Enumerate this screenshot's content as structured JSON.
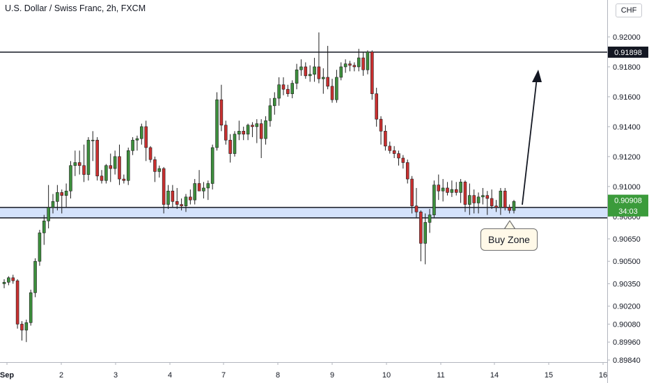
{
  "header": {
    "title": "U.S. Dollar / Swiss Franc, 2h, FXCM",
    "currency_button": "CHF"
  },
  "colors": {
    "up": "#3d8f3d",
    "down": "#c93030",
    "zone_fill": "#d4e2fb",
    "price_tag_green": "#3b9b3b",
    "price_tag_black": "#131722"
  },
  "annotations": {
    "buy_zone_label": "Buy Zone",
    "resistance_level": 0.91898,
    "zone_top": 0.9086,
    "zone_bottom": 0.9079
  },
  "price_tags": [
    {
      "label": "0.91898",
      "value": 0.91898,
      "style": "black"
    },
    {
      "label": "0.90908",
      "value": 0.90908,
      "style": "green"
    },
    {
      "label": "34:03",
      "value": 0.90837,
      "style": "green"
    }
  ],
  "chart_data": {
    "type": "candlestick",
    "title": "U.S. Dollar / Swiss Franc, 2h, FXCM",
    "ylim": [
      0.8984,
      0.9217
    ],
    "y_ticks": [
      {
        "label": "0.92000",
        "value": 0.92
      },
      {
        "label": "0.91800",
        "value": 0.918
      },
      {
        "label": "0.91600",
        "value": 0.916
      },
      {
        "label": "0.91400",
        "value": 0.914
      },
      {
        "label": "0.91200",
        "value": 0.912
      },
      {
        "label": "0.91000",
        "value": 0.91
      },
      {
        "label": "0.90800",
        "value": 0.908
      },
      {
        "label": "0.90650",
        "value": 0.9065
      },
      {
        "label": "0.90500",
        "value": 0.905
      },
      {
        "label": "0.90350",
        "value": 0.9035
      },
      {
        "label": "0.90200",
        "value": 0.902
      },
      {
        "label": "0.90080",
        "value": 0.9008
      },
      {
        "label": "0.89960",
        "value": 0.8996
      },
      {
        "label": "0.89840",
        "value": 0.8984
      }
    ],
    "x_ticks": [
      "Sep",
      "2",
      "3",
      "4",
      "7",
      "8",
      "9",
      "10",
      "11",
      "14",
      "15",
      "16"
    ],
    "candles": [
      [
        0.9035,
        0.9038,
        0.9032,
        0.9036
      ],
      [
        0.9036,
        0.904,
        0.9034,
        0.9039
      ],
      [
        0.9039,
        0.9041,
        0.9035,
        0.9037
      ],
      [
        0.9037,
        0.9038,
        0.9005,
        0.9008
      ],
      [
        0.9008,
        0.901,
        0.8997,
        0.9004
      ],
      [
        0.9004,
        0.9011,
        0.8996,
        0.9009
      ],
      [
        0.9009,
        0.9031,
        0.9007,
        0.9029
      ],
      [
        0.9029,
        0.9052,
        0.9026,
        0.905
      ],
      [
        0.905,
        0.9071,
        0.9047,
        0.9069
      ],
      [
        0.9069,
        0.9081,
        0.9061,
        0.9077
      ],
      [
        0.9077,
        0.9101,
        0.9072,
        0.9086
      ],
      [
        0.9086,
        0.9095,
        0.9082,
        0.909
      ],
      [
        0.909,
        0.9101,
        0.9084,
        0.9096
      ],
      [
        0.9096,
        0.9098,
        0.9082,
        0.9094
      ],
      [
        0.9094,
        0.9102,
        0.9086,
        0.9097
      ],
      [
        0.9097,
        0.9117,
        0.9092,
        0.9114
      ],
      [
        0.9114,
        0.9124,
        0.9107,
        0.9116
      ],
      [
        0.9116,
        0.9124,
        0.9108,
        0.9114
      ],
      [
        0.9114,
        0.9128,
        0.9103,
        0.9108
      ],
      [
        0.9108,
        0.9133,
        0.9104,
        0.9131
      ],
      [
        0.9131,
        0.9137,
        0.9117,
        0.9131
      ],
      [
        0.9131,
        0.9133,
        0.9104,
        0.9107
      ],
      [
        0.9107,
        0.9111,
        0.9102,
        0.9104
      ],
      [
        0.9104,
        0.9115,
        0.9102,
        0.9114
      ],
      [
        0.9114,
        0.9122,
        0.9103,
        0.9112
      ],
      [
        0.9112,
        0.9124,
        0.9108,
        0.912
      ],
      [
        0.912,
        0.9128,
        0.9101,
        0.9105
      ],
      [
        0.9105,
        0.9108,
        0.9102,
        0.9104
      ],
      [
        0.9104,
        0.9126,
        0.9101,
        0.9124
      ],
      [
        0.9124,
        0.9133,
        0.9121,
        0.9131
      ],
      [
        0.9131,
        0.9134,
        0.9124,
        0.9132
      ],
      [
        0.9132,
        0.9142,
        0.9128,
        0.914
      ],
      [
        0.914,
        0.9144,
        0.9117,
        0.9126
      ],
      [
        0.9126,
        0.9127,
        0.9116,
        0.9118
      ],
      [
        0.9118,
        0.912,
        0.9103,
        0.911
      ],
      [
        0.911,
        0.9114,
        0.9106,
        0.9112
      ],
      [
        0.9112,
        0.9113,
        0.9082,
        0.9088
      ],
      [
        0.9088,
        0.9101,
        0.9085,
        0.9097
      ],
      [
        0.9097,
        0.9101,
        0.9086,
        0.909
      ],
      [
        0.909,
        0.9099,
        0.9085,
        0.9088
      ],
      [
        0.9088,
        0.9092,
        0.9084,
        0.9087
      ],
      [
        0.9087,
        0.9095,
        0.9083,
        0.9093
      ],
      [
        0.9093,
        0.9098,
        0.9088,
        0.9091
      ],
      [
        0.9091,
        0.9105,
        0.9088,
        0.9102
      ],
      [
        0.9102,
        0.9111,
        0.9099,
        0.9097
      ],
      [
        0.9097,
        0.9103,
        0.9092,
        0.9099
      ],
      [
        0.9099,
        0.9104,
        0.9091,
        0.9102
      ],
      [
        0.9102,
        0.9128,
        0.9098,
        0.9126
      ],
      [
        0.9126,
        0.9163,
        0.9124,
        0.9158
      ],
      [
        0.9158,
        0.9168,
        0.9137,
        0.9141
      ],
      [
        0.9141,
        0.9144,
        0.9128,
        0.9131
      ],
      [
        0.9131,
        0.9135,
        0.9116,
        0.9122
      ],
      [
        0.9122,
        0.9137,
        0.912,
        0.9135
      ],
      [
        0.9135,
        0.9144,
        0.9131,
        0.9137
      ],
      [
        0.9137,
        0.914,
        0.9131,
        0.9135
      ],
      [
        0.9135,
        0.9142,
        0.9131,
        0.9141
      ],
      [
        0.9141,
        0.9143,
        0.9133,
        0.914
      ],
      [
        0.914,
        0.9145,
        0.9129,
        0.9142
      ],
      [
        0.9142,
        0.9145,
        0.9119,
        0.9132
      ],
      [
        0.9132,
        0.9147,
        0.9128,
        0.9144
      ],
      [
        0.9144,
        0.9159,
        0.914,
        0.9154
      ],
      [
        0.9154,
        0.9163,
        0.9148,
        0.9159
      ],
      [
        0.9159,
        0.9173,
        0.9154,
        0.9168
      ],
      [
        0.9168,
        0.9173,
        0.9161,
        0.9165
      ],
      [
        0.9165,
        0.9168,
        0.916,
        0.9162
      ],
      [
        0.9162,
        0.9171,
        0.9159,
        0.9169
      ],
      [
        0.9169,
        0.9182,
        0.9165,
        0.9178
      ],
      [
        0.9178,
        0.9185,
        0.9174,
        0.918
      ],
      [
        0.918,
        0.9183,
        0.9172,
        0.9174
      ],
      [
        0.9174,
        0.9181,
        0.917,
        0.9175
      ],
      [
        0.9175,
        0.9186,
        0.917,
        0.918
      ],
      [
        0.918,
        0.9203,
        0.9169,
        0.9172
      ],
      [
        0.9172,
        0.9179,
        0.9162,
        0.9173
      ],
      [
        0.9173,
        0.9194,
        0.9165,
        0.9167
      ],
      [
        0.9167,
        0.9172,
        0.9156,
        0.9158
      ],
      [
        0.9158,
        0.9178,
        0.9156,
        0.9173
      ],
      [
        0.9173,
        0.9183,
        0.9171,
        0.918
      ],
      [
        0.918,
        0.9185,
        0.9176,
        0.9182
      ],
      [
        0.9182,
        0.9184,
        0.9177,
        0.9181
      ],
      [
        0.9181,
        0.9183,
        0.9177,
        0.918
      ],
      [
        0.918,
        0.9192,
        0.9177,
        0.9186
      ],
      [
        0.9186,
        0.919,
        0.9174,
        0.9178
      ],
      [
        0.9178,
        0.9191,
        0.9175,
        0.919
      ],
      [
        0.919,
        0.9191,
        0.9158,
        0.9162
      ],
      [
        0.9162,
        0.9166,
        0.914,
        0.9145
      ],
      [
        0.9145,
        0.9147,
        0.9128,
        0.9137
      ],
      [
        0.9137,
        0.9141,
        0.9124,
        0.9127
      ],
      [
        0.9127,
        0.913,
        0.9122,
        0.9124
      ],
      [
        0.9124,
        0.9127,
        0.9119,
        0.9122
      ],
      [
        0.9122,
        0.9124,
        0.9114,
        0.9119
      ],
      [
        0.9119,
        0.9121,
        0.9112,
        0.9116
      ],
      [
        0.9116,
        0.9118,
        0.9102,
        0.9105
      ],
      [
        0.9105,
        0.9107,
        0.9082,
        0.9087
      ],
      [
        0.9087,
        0.9099,
        0.9079,
        0.9083
      ],
      [
        0.9083,
        0.9084,
        0.905,
        0.9062
      ],
      [
        0.9062,
        0.9082,
        0.9048,
        0.9076
      ],
      [
        0.9076,
        0.9085,
        0.9069,
        0.9081
      ],
      [
        0.9081,
        0.9104,
        0.9079,
        0.9101
      ],
      [
        0.9101,
        0.9108,
        0.9091,
        0.9097
      ],
      [
        0.9097,
        0.9105,
        0.909,
        0.9099
      ],
      [
        0.9099,
        0.9103,
        0.9094,
        0.9096
      ],
      [
        0.9096,
        0.9104,
        0.9093,
        0.9098
      ],
      [
        0.9098,
        0.9103,
        0.9094,
        0.9096
      ],
      [
        0.9096,
        0.9105,
        0.9089,
        0.9103
      ],
      [
        0.9103,
        0.9104,
        0.9083,
        0.9088
      ],
      [
        0.9088,
        0.9102,
        0.9081,
        0.9094
      ],
      [
        0.9094,
        0.9098,
        0.9082,
        0.9089
      ],
      [
        0.9089,
        0.9096,
        0.9082,
        0.9093
      ],
      [
        0.9093,
        0.9099,
        0.9088,
        0.9094
      ],
      [
        0.9094,
        0.9097,
        0.9081,
        0.9092
      ],
      [
        0.9092,
        0.9098,
        0.9085,
        0.9087
      ],
      [
        0.9087,
        0.9091,
        0.9083,
        0.9086
      ],
      [
        0.9086,
        0.9099,
        0.9081,
        0.9097
      ],
      [
        0.9097,
        0.9099,
        0.9084,
        0.9086
      ],
      [
        0.9086,
        0.9088,
        0.9082,
        0.9084
      ],
      [
        0.9084,
        0.9091,
        0.9082,
        0.909
      ]
    ],
    "candle_x_range": [
      6,
      738
    ],
    "grid": false,
    "legend": "none"
  }
}
